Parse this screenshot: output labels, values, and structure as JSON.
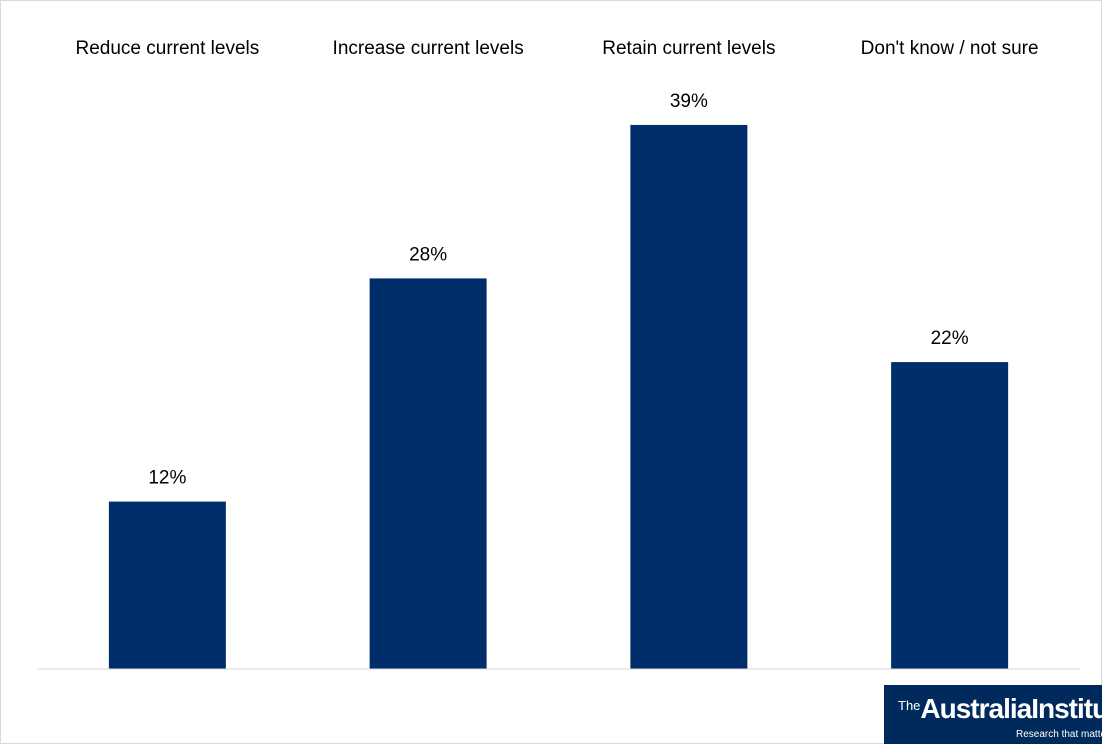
{
  "chart_data": {
    "type": "bar",
    "categories": [
      "Reduce current levels",
      "Increase current levels",
      "Retain current levels",
      "Don't know / not sure"
    ],
    "values": [
      12,
      28,
      39,
      22
    ],
    "data_labels": [
      "12%",
      "28%",
      "39%",
      "22%"
    ],
    "value_unit": "%",
    "ylim": [
      0,
      50
    ],
    "grid": false,
    "legend": "none",
    "category_labels_position": "top",
    "bar_color": "#002e6b"
  },
  "logo": {
    "the": "The",
    "name": "AustraliaInstitute",
    "tagline": "Research that matters"
  }
}
